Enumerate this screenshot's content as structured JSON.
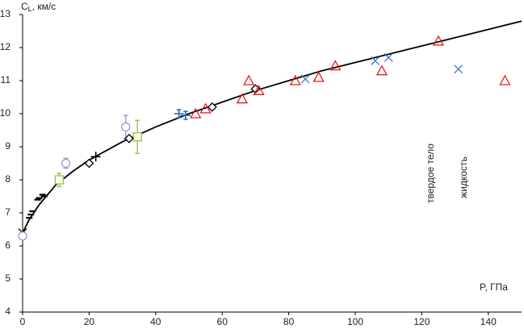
{
  "chart_data": {
    "type": "scatter",
    "y_label_symbol": "C",
    "y_label_subscript": "L",
    "y_label_unit": ", км/с",
    "x_label": "P, ГПа",
    "annotations": [
      "твердое тело",
      "жидкость"
    ],
    "xlim": [
      0,
      150
    ],
    "ylim": [
      4,
      13
    ],
    "xticks": [
      0,
      20,
      40,
      60,
      80,
      100,
      120,
      140
    ],
    "yticks": [
      4,
      5,
      6,
      7,
      8,
      9,
      10,
      11,
      12,
      13
    ],
    "grid": false,
    "curve": {
      "color": "#000000",
      "x": [
        0,
        2,
        5,
        10,
        15,
        20,
        30,
        40,
        50,
        60,
        70,
        80,
        90,
        100,
        110,
        120,
        130,
        140,
        150
      ],
      "values": [
        6.4,
        6.8,
        7.25,
        7.85,
        8.25,
        8.6,
        9.15,
        9.6,
        10.0,
        10.35,
        10.7,
        11.0,
        11.3,
        11.55,
        11.8,
        12.05,
        12.3,
        12.55,
        12.8
      ]
    },
    "series": [
      {
        "marker": "dash",
        "color": "#000000",
        "x": [
          2,
          2.5,
          3,
          4.5,
          5,
          6,
          6.5
        ],
        "values": [
          6.85,
          6.95,
          7.05,
          7.4,
          7.45,
          7.55,
          7.5
        ]
      },
      {
        "marker": "x",
        "color": "#000000",
        "x": [
          0
        ],
        "values": [
          6.4
        ]
      },
      {
        "marker": "circle",
        "color": "#9999cc",
        "x": [
          0,
          13,
          31
        ],
        "values": [
          6.3,
          8.5,
          9.6
        ],
        "errors": [
          0.1,
          0.15,
          0.35
        ]
      },
      {
        "marker": "square",
        "color": "#8dc63f",
        "x": [
          11,
          34.5
        ],
        "values": [
          8.0,
          9.3
        ],
        "errors": [
          0.2,
          0.5
        ]
      },
      {
        "marker": "diamond",
        "color": "#000000",
        "x": [
          20,
          32,
          57,
          70
        ],
        "values": [
          8.5,
          9.25,
          10.2,
          10.75
        ]
      },
      {
        "marker": "plus",
        "color": "#000000",
        "x": [
          22
        ],
        "values": [
          8.7
        ]
      },
      {
        "marker": "plus",
        "color": "#3366aa",
        "x": [
          47,
          49
        ],
        "values": [
          10.0,
          9.95
        ],
        "errors": [
          0.12,
          0.12
        ]
      },
      {
        "marker": "triangle",
        "color": "#e31a1c",
        "x": [
          52,
          55,
          66,
          68,
          71,
          82,
          89,
          94,
          108,
          125,
          145
        ],
        "values": [
          10.0,
          10.15,
          10.45,
          11.0,
          10.7,
          11.0,
          11.1,
          11.45,
          11.3,
          12.2,
          11.0
        ]
      },
      {
        "marker": "x",
        "color": "#4472c4",
        "x": [
          85,
          106,
          110,
          131
        ],
        "values": [
          11.05,
          11.6,
          11.7,
          11.35
        ]
      }
    ]
  }
}
